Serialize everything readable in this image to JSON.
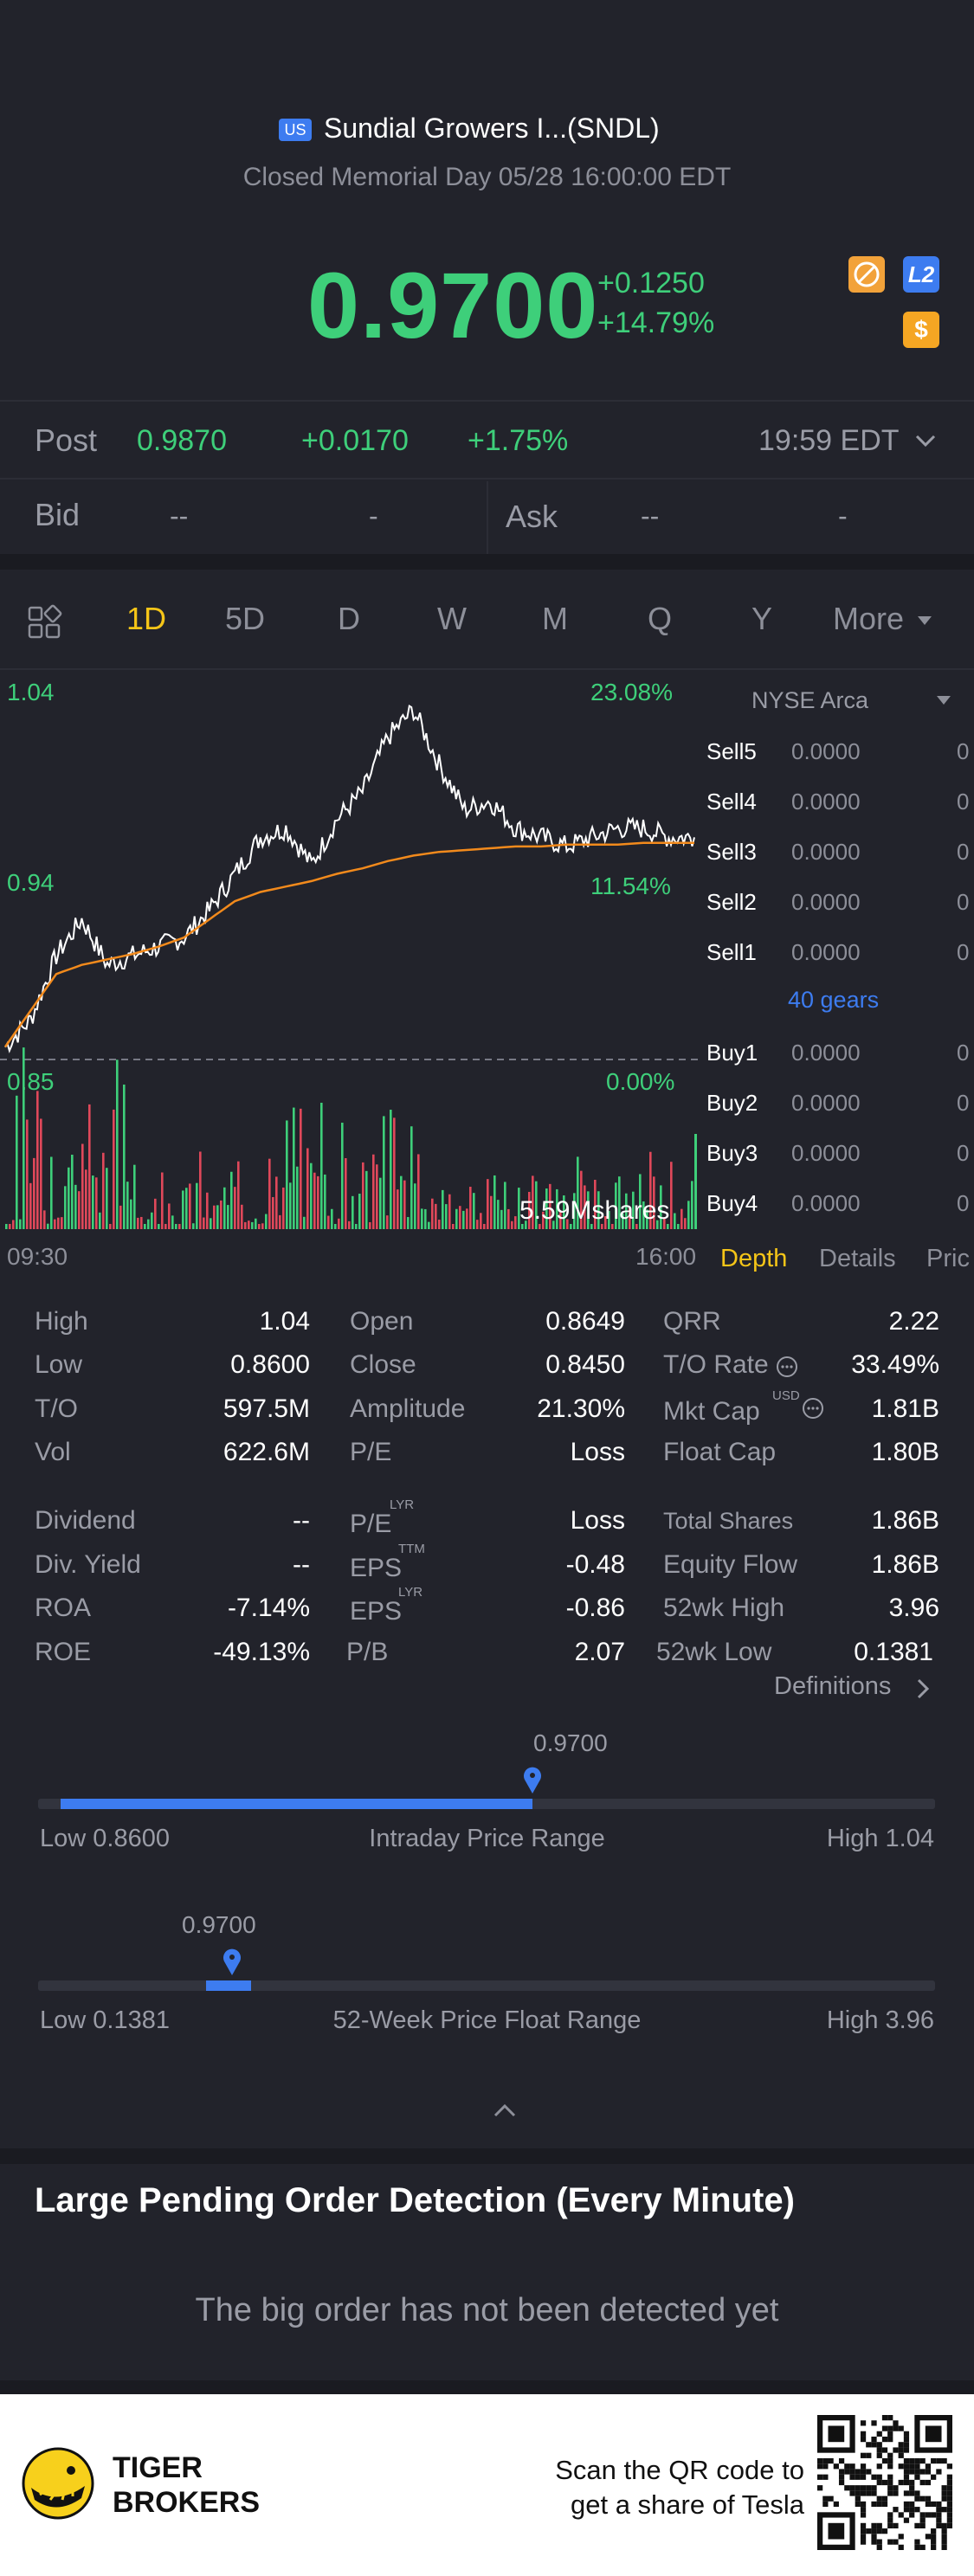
{
  "header": {
    "market_badge": "US",
    "title": "Sundial Growers I...(SNDL)",
    "status": "Closed Memorial Day 05/28 16:00:00 EDT"
  },
  "quote": {
    "price": "0.9700",
    "change": "+0.1250",
    "change_pct": "+14.79%",
    "badge_l2": "L2",
    "badge_dollar": "$"
  },
  "post": {
    "label": "Post",
    "price": "0.9870",
    "change": "+0.0170",
    "change_pct": "+1.75%",
    "time": "19:59 EDT"
  },
  "bidask": {
    "bid_label": "Bid",
    "bid_price": "--",
    "bid_size": "-",
    "ask_label": "Ask",
    "ask_price": "--",
    "ask_size": "-"
  },
  "period_tabs": [
    "1D",
    "5D",
    "D",
    "W",
    "M",
    "Q",
    "Y",
    "More"
  ],
  "selected_period": "1D",
  "chart_labels": {
    "y_high": "1.04",
    "y_mid": "0.94",
    "y_low": "0.85",
    "pct_high": "23.08%",
    "pct_mid": "11.54%",
    "pct_low": "0.00%",
    "volume": "5.59Mshares",
    "time_start": "09:30",
    "time_end": "16:00"
  },
  "chart_data": {
    "type": "line",
    "x_range": [
      "09:30",
      "16:00"
    ],
    "ylim": [
      0.85,
      1.04
    ],
    "series": [
      {
        "name": "",
        "color": "#ffffff",
        "values": [
          0.855,
          0.87,
          0.905,
          0.925,
          0.9,
          0.905,
          0.91,
          0.915,
          0.93,
          0.95,
          0.97,
          0.975,
          0.955,
          0.98,
          0.995,
          1.025,
          1.04,
          1.01,
          0.985,
          0.99,
          0.975,
          0.97,
          0.965,
          0.97,
          0.975,
          0.975,
          0.97,
          0.97
        ]
      },
      {
        "name": "",
        "color": "#f28a1c",
        "values": [
          0.855,
          0.875,
          0.895,
          0.9,
          0.903,
          0.906,
          0.91,
          0.915,
          0.925,
          0.935,
          0.94,
          0.943,
          0.946,
          0.95,
          0.953,
          0.957,
          0.96,
          0.962,
          0.963,
          0.964,
          0.965,
          0.965,
          0.966,
          0.966,
          0.966,
          0.967,
          0.967,
          0.967
        ]
      }
    ],
    "volume_unit": "Mshares"
  },
  "orderbook": {
    "exchange": "NYSE Arca",
    "sells": [
      {
        "label": "Sell5",
        "price": "0.0000",
        "qty": "0"
      },
      {
        "label": "Sell4",
        "price": "0.0000",
        "qty": "0"
      },
      {
        "label": "Sell3",
        "price": "0.0000",
        "qty": "0"
      },
      {
        "label": "Sell2",
        "price": "0.0000",
        "qty": "0"
      },
      {
        "label": "Sell1",
        "price": "0.0000",
        "qty": "0"
      }
    ],
    "gears": "40 gears",
    "buys": [
      {
        "label": "Buy1",
        "price": "0.0000",
        "qty": "0"
      },
      {
        "label": "Buy2",
        "price": "0.0000",
        "qty": "0"
      },
      {
        "label": "Buy3",
        "price": "0.0000",
        "qty": "0"
      },
      {
        "label": "Buy4",
        "price": "0.0000",
        "qty": "0"
      }
    ],
    "tabs": [
      "Depth",
      "Details",
      "Pric"
    ]
  },
  "stats": {
    "c1": [
      [
        "High",
        "1.04"
      ],
      [
        "Low",
        "0.8600"
      ],
      [
        "T/O",
        "597.5M"
      ],
      [
        "Vol",
        "622.6M"
      ]
    ],
    "c2": [
      [
        "Open",
        "0.8649"
      ],
      [
        "Close",
        "0.8450"
      ],
      [
        "Amplitude",
        "21.30%"
      ],
      [
        "P/E",
        "Loss"
      ]
    ],
    "c3": [
      [
        "QRR",
        "2.22"
      ],
      [
        "T/O Rate",
        "33.49%"
      ],
      [
        "Mkt Cap",
        "1.81B"
      ],
      [
        "Float Cap",
        "1.80B"
      ]
    ],
    "c1b": [
      [
        "Dividend",
        "--"
      ],
      [
        "Div. Yield",
        "--"
      ],
      [
        "ROA",
        "-7.14%"
      ],
      [
        "ROE",
        "-49.13%"
      ]
    ],
    "c2b": [
      [
        "P/E",
        "Loss"
      ],
      [
        "EPS",
        "-0.48"
      ],
      [
        "EPS",
        "-0.86"
      ],
      [
        "P/B",
        "2.07"
      ]
    ],
    "c3b": [
      [
        "Total Shares",
        "1.86B"
      ],
      [
        "Equity Flow",
        "1.86B"
      ],
      [
        "52wk High",
        "3.96"
      ],
      [
        "52wk Low",
        "0.1381"
      ]
    ],
    "sup_lyr": "LYR",
    "sup_ttm": "TTM",
    "sup_usd": "USD",
    "definitions": "Definitions"
  },
  "intraday_range": {
    "marker": "0.9700",
    "low": "Low 0.8600",
    "title": "Intraday Price Range",
    "high": "High 1.04",
    "fraction": 0.6
  },
  "week52_range": {
    "marker": "0.9700",
    "low": "Low 0.1381",
    "title": "52-Week Price Float Range",
    "high": "High 3.96",
    "fraction": 0.22
  },
  "large_orders": {
    "title": "Large Pending Order Detection (Every Minute)",
    "empty_text": "The big order has not been detected yet"
  },
  "footer": {
    "brand_line1": "TIGER",
    "brand_line2": "BROKERS",
    "promo_line1": "Scan the QR code to",
    "promo_line2": "get a share of Tesla"
  },
  "colors": {
    "up": "#3ecf7a",
    "down": "#e0485a",
    "accent_yellow": "#f5c518",
    "accent_blue": "#3d7cf0",
    "ma_line": "#f28a1c"
  }
}
